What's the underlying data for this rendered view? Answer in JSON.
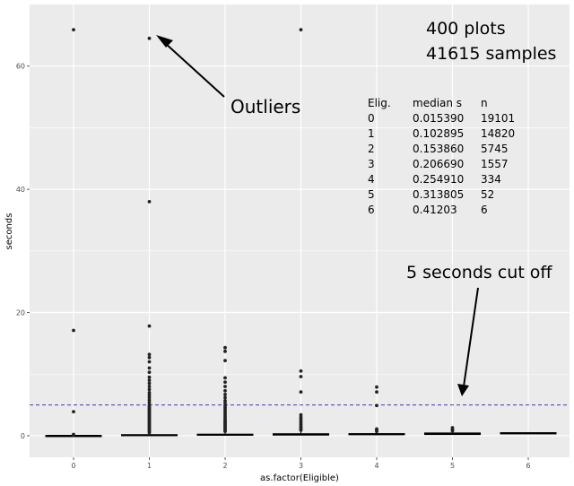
{
  "chart_data": {
    "type": "boxplot",
    "xlabel": "as.factor(Eligible)",
    "ylabel": "seconds",
    "categories": [
      "0",
      "1",
      "2",
      "3",
      "4",
      "5",
      "6"
    ],
    "x_ticks": [
      "0",
      "1",
      "2",
      "3",
      "4",
      "5",
      "6"
    ],
    "y_ticks": [
      0,
      20,
      40,
      60
    ],
    "ylim": [
      -3.5,
      70
    ],
    "grid": true,
    "background": "#ebebeb",
    "grid_color": "#ffffff",
    "box_color": "#000000",
    "cutoff": {
      "y": 5,
      "color": "#3b3bb3",
      "style": "dashed"
    },
    "series": [
      {
        "category": "0",
        "box": [
          0.005,
          0.015,
          0.03
        ],
        "whisker_max": 0.07,
        "outliers": [
          0.1,
          0.2,
          3.9,
          17.1,
          65.9
        ]
      },
      {
        "category": "1",
        "box": [
          0.05,
          0.103,
          0.18
        ],
        "whisker_max": 0.4,
        "outliers": [
          0.5,
          0.7,
          0.9,
          1.1,
          1.3,
          1.5,
          1.7,
          1.9,
          2.1,
          2.3,
          2.5,
          2.7,
          2.9,
          3.1,
          3.3,
          3.5,
          3.7,
          3.9,
          4.1,
          4.3,
          4.5,
          4.7,
          5.0,
          5.4,
          5.8,
          6.2,
          6.6,
          7.0,
          7.5,
          8.0,
          8.5,
          9.0,
          9.5,
          10.3,
          11.0,
          12.0,
          12.7,
          13.2,
          17.8,
          38.0,
          64.5
        ]
      },
      {
        "category": "2",
        "box": [
          0.08,
          0.154,
          0.26
        ],
        "whisker_max": 0.55,
        "outliers": [
          0.7,
          0.9,
          1.1,
          1.3,
          1.5,
          1.7,
          1.9,
          2.1,
          2.3,
          2.5,
          2.8,
          3.1,
          3.4,
          3.7,
          4.0,
          4.3,
          4.6,
          4.9,
          5.3,
          5.7,
          6.2,
          6.7,
          7.3,
          8.0,
          8.7,
          9.4,
          12.2,
          13.7,
          14.3
        ]
      },
      {
        "category": "3",
        "box": [
          0.1,
          0.207,
          0.33
        ],
        "whisker_max": 0.7,
        "outliers": [
          0.9,
          1.1,
          1.3,
          1.5,
          1.8,
          2.1,
          2.4,
          2.7,
          3.0,
          3.4,
          7.1,
          9.6,
          10.5,
          65.9
        ]
      },
      {
        "category": "4",
        "box": [
          0.15,
          0.255,
          0.35
        ],
        "whisker_max": 0.6,
        "outliers": [
          0.7,
          0.9,
          1.1,
          4.9,
          7.1,
          7.9
        ]
      },
      {
        "category": "5",
        "box": [
          0.2,
          0.314,
          0.45
        ],
        "whisker_max": 0.7,
        "outliers": [
          0.8,
          1.0,
          1.3
        ]
      },
      {
        "category": "6",
        "box": [
          0.3,
          0.412,
          0.5
        ],
        "whisker_max": 0.6,
        "outliers": []
      }
    ]
  },
  "annotations": {
    "plots": "400 plots",
    "samples": "41615 samples",
    "outliers": "Outliers",
    "cutoff": "5 seconds cut off"
  },
  "table": {
    "headers": [
      "Elig.",
      "median s",
      "n"
    ],
    "rows": [
      [
        "0",
        "0.015390",
        "19101"
      ],
      [
        "1",
        "0.102895",
        "14820"
      ],
      [
        "2",
        "0.153860",
        "5745"
      ],
      [
        "3",
        "0.206690",
        "1557"
      ],
      [
        "4",
        "0.254910",
        "334"
      ],
      [
        "5",
        "0.313805",
        "52"
      ],
      [
        "6",
        "0.41203",
        "6"
      ]
    ]
  }
}
